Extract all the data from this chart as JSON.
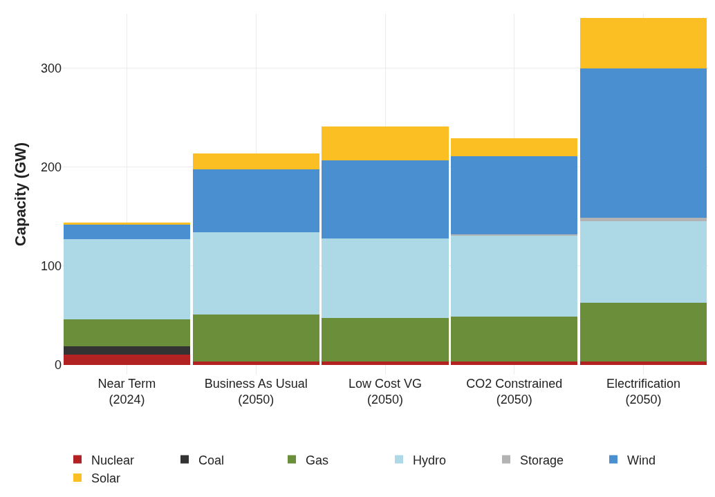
{
  "chart_data": {
    "type": "bar",
    "stacked": true,
    "ylabel": "Capacity (GW)",
    "categories": [
      "Near Term\n(2024)",
      "Business As Usual\n(2050)",
      "Low Cost VG\n(2050)",
      "CO2 Constrained\n(2050)",
      "Electrification\n(2050)"
    ],
    "series": [
      {
        "name": "Nuclear",
        "color": "#b22222",
        "values": [
          10,
          3,
          3,
          3,
          3
        ]
      },
      {
        "name": "Coal",
        "color": "#333333",
        "values": [
          9,
          0,
          0,
          0,
          0
        ]
      },
      {
        "name": "Gas",
        "color": "#6b8e3a",
        "values": [
          27,
          48,
          44,
          46,
          60
        ]
      },
      {
        "name": "Hydro",
        "color": "#add8e6",
        "values": [
          81,
          83,
          81,
          82,
          82
        ]
      },
      {
        "name": "Storage",
        "color": "#b3b3b3",
        "values": [
          0,
          0,
          0,
          1,
          4
        ]
      },
      {
        "name": "Wind",
        "color": "#4a90d0",
        "values": [
          15,
          64,
          79,
          79,
          151
        ]
      },
      {
        "name": "Solar",
        "color": "#fbbf24",
        "values": [
          2,
          16,
          34,
          18,
          51
        ]
      }
    ],
    "ylim": [
      -10,
      355
    ],
    "yticks": [
      0,
      100,
      200,
      300
    ],
    "grid": true,
    "legend": "bottom"
  }
}
